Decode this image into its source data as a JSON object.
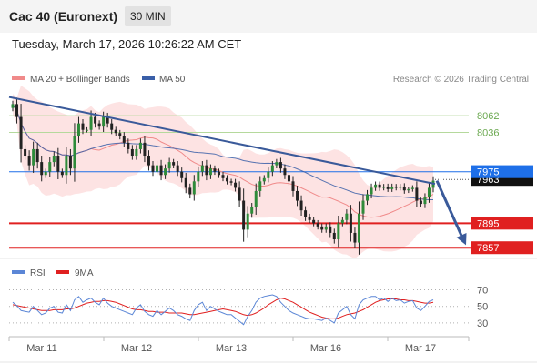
{
  "header": {
    "title": "Cac 40 (Euronext)",
    "timeframe": "30 MIN",
    "datetime": "Tuesday, March 17, 2026 10:26:22 AM CET"
  },
  "legend": {
    "ma20_label": "MA 20 + Bollinger Bands",
    "ma50_label": "MA 50",
    "copyright": "Research © 2026 Trading Central"
  },
  "rsi_legend": {
    "rsi_label": "RSI",
    "ma9_label": "9MA"
  },
  "colors": {
    "ma20": "#f08a8a",
    "ma50": "#3a5fa8",
    "bollinger_fill": "#fde3e3",
    "resistance_green": "#b5d99c",
    "support_red": "#e02020",
    "current_blue": "#1e6fe8",
    "trendline": "#3a5a9a",
    "rsi": "#5b86d6",
    "rsi_ma": "#e02020"
  },
  "chart_data": [
    {
      "type": "candlestick",
      "ylim": [
        7846,
        8106
      ],
      "x_labels": [
        "Mar 11",
        "Mar 12",
        "Mar 13",
        "Mar 16",
        "Mar 17"
      ],
      "levels": [
        {
          "value": 8062,
          "label": "8062",
          "kind": "resistance"
        },
        {
          "value": 8036,
          "label": "8036",
          "kind": "resistance"
        },
        {
          "value": 7975,
          "label": "7975",
          "kind": "current"
        },
        {
          "value": 7963,
          "label": "7963",
          "kind": "pivot"
        },
        {
          "value": 7895,
          "label": "7895",
          "kind": "support"
        },
        {
          "value": 7857,
          "label": "7857",
          "kind": "support"
        }
      ],
      "trendline": {
        "from": 8091,
        "to": 7956
      },
      "forecast_arrow": {
        "from": 7961,
        "to": 7861
      },
      "closes": [
        8080,
        8060,
        8010,
        8000,
        7985,
        8010,
        7990,
        7970,
        7975,
        7990,
        8000,
        7975,
        7970,
        8000,
        7980,
        8030,
        8050,
        8040,
        8040,
        8060,
        8050,
        8045,
        8060,
        8050,
        8040,
        8035,
        8030,
        8020,
        8010,
        8000,
        8010,
        8020,
        8000,
        7985,
        7975,
        7985,
        7970,
        7980,
        7990,
        7985,
        7975,
        7965,
        7950,
        7940,
        7960,
        7975,
        7985,
        7970,
        7980,
        7975,
        7970,
        7965,
        7960,
        7958,
        7950,
        7930,
        7885,
        7910,
        7920,
        7945,
        7960,
        7965,
        7975,
        7985,
        7990,
        7980,
        7970,
        7960,
        7945,
        7930,
        7915,
        7905,
        7900,
        7895,
        7890,
        7885,
        7890,
        7880,
        7870,
        7895,
        7900,
        7910,
        7880,
        7865,
        7910,
        7930,
        7940,
        7950,
        7955,
        7950,
        7952,
        7948,
        7952,
        7950,
        7952,
        7946,
        7948,
        7950,
        7930,
        7925,
        7935,
        7950,
        7961
      ]
    },
    {
      "type": "line",
      "ylim": [
        20,
        75
      ],
      "y_ticks": [
        70,
        50,
        30
      ],
      "series": [
        {
          "name": "RSI",
          "values": [
            55,
            51,
            45,
            44,
            43,
            50,
            45,
            40,
            42,
            48,
            50,
            43,
            42,
            52,
            45,
            58,
            62,
            55,
            58,
            60,
            55,
            52,
            60,
            54,
            50,
            48,
            46,
            44,
            42,
            40,
            48,
            52,
            44,
            40,
            38,
            45,
            40,
            44,
            48,
            45,
            40,
            38,
            35,
            33,
            45,
            52,
            55,
            45,
            50,
            47,
            44,
            42,
            40,
            40,
            36,
            32,
            28,
            38,
            45,
            55,
            60,
            62,
            63,
            64,
            62,
            55,
            50,
            45,
            42,
            40,
            38,
            36,
            35,
            35,
            34,
            33,
            36,
            33,
            30,
            42,
            46,
            50,
            40,
            35,
            52,
            58,
            60,
            62,
            62,
            58,
            60,
            56,
            60,
            57,
            58,
            54,
            56,
            57,
            48,
            45,
            50,
            56,
            58
          ]
        },
        {
          "name": "9MA",
          "values": [
            52,
            51,
            50,
            49,
            48,
            47,
            46,
            45,
            45,
            45,
            46,
            46,
            46,
            47,
            47,
            48,
            50,
            52,
            54,
            55,
            56,
            56,
            57,
            57,
            56,
            55,
            53,
            51,
            49,
            47,
            46,
            46,
            45,
            44,
            44,
            43,
            43,
            43,
            42,
            42,
            42,
            42,
            41,
            40,
            40,
            41,
            42,
            43,
            44,
            45,
            46,
            47,
            46,
            45,
            44,
            42,
            40,
            39,
            40,
            42,
            45,
            48,
            52,
            55,
            58,
            60,
            59,
            57,
            55,
            52,
            49,
            46,
            43,
            41,
            39,
            37,
            36,
            35,
            35,
            36,
            38,
            40,
            41,
            42,
            44,
            46,
            49,
            52,
            55,
            57,
            58,
            59,
            59,
            59,
            58,
            58,
            57,
            57,
            56,
            55,
            54,
            54,
            55
          ]
        }
      ]
    }
  ]
}
